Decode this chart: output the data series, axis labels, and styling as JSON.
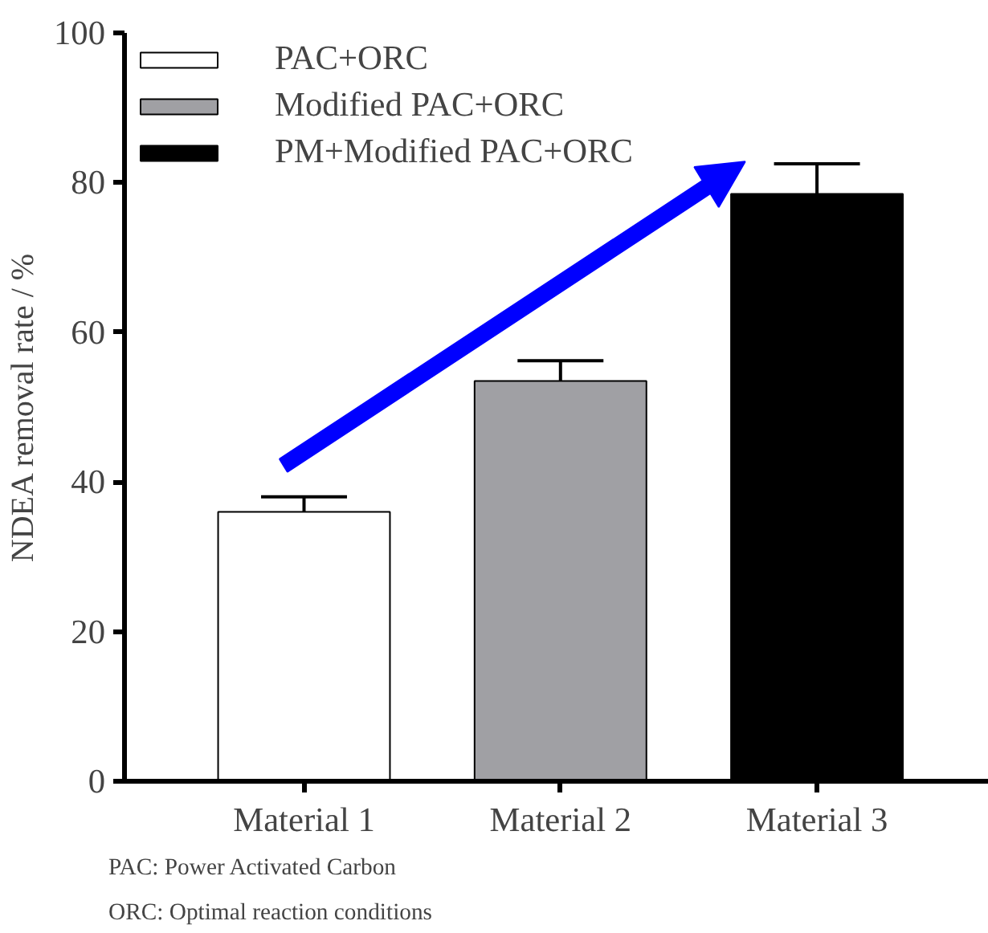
{
  "chart_data": {
    "type": "bar",
    "categories": [
      "Material 1",
      "Material 2",
      "Material 3"
    ],
    "series": [
      {
        "name": "PAC+ORC",
        "color": "#ffffff",
        "values": [
          36,
          null,
          null
        ],
        "errors": [
          2,
          null,
          null
        ]
      },
      {
        "name": "Modified PAC+ORC",
        "color": "#a0a0a4",
        "values": [
          null,
          53.5,
          null
        ],
        "errors": [
          null,
          2.7,
          null
        ]
      },
      {
        "name": "PM+Modified PAC+ORC",
        "color": "#000000",
        "values": [
          null,
          null,
          78.5
        ],
        "errors": [
          null,
          null,
          4
        ]
      }
    ],
    "ylabel": "NDEA removal rate / %",
    "ylim": [
      0,
      100
    ],
    "yticks": [
      0,
      20,
      40,
      60,
      80,
      100
    ],
    "grid": false,
    "legend": "top left",
    "annotations": [
      "PAC: Power Activated Carbon",
      "ORC: Optimal reaction conditions"
    ]
  }
}
